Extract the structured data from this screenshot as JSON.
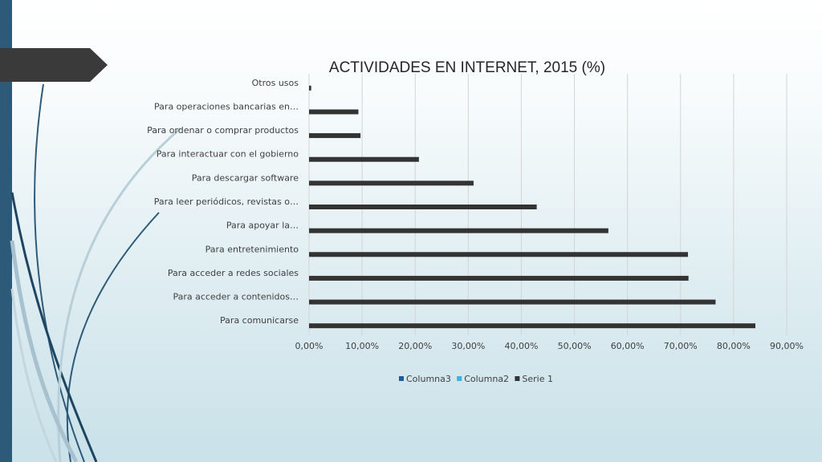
{
  "chart_data": {
    "type": "bar",
    "orientation": "horizontal",
    "title": "ACTIVIDADES EN INTERNET, 2015 (%)",
    "categories": [
      "Para comunicarse",
      "Para acceder a contenidos…",
      "Para acceder a redes sociales",
      "Para entretenimiento",
      "Para apoyar la…",
      "Para leer periódicos, revistas o…",
      "Para descargar software",
      "Para interactuar con el gobierno",
      "Para ordenar o comprar productos",
      "Para operaciones bancarias en…",
      "Otros usos"
    ],
    "series": [
      {
        "name": "Serie 1",
        "color": "#333333",
        "values": [
          84.1,
          76.6,
          71.5,
          71.4,
          56.4,
          42.9,
          31.0,
          20.7,
          9.7,
          9.3,
          0.4
        ]
      }
    ],
    "xlim": [
      0,
      90
    ],
    "ticks": [
      0,
      10,
      20,
      30,
      40,
      50,
      60,
      70,
      80,
      90
    ],
    "tick_labels": [
      "0,00%",
      "10,00%",
      "20,00%",
      "30,00%",
      "40,00%",
      "50,00%",
      "60,00%",
      "70,00%",
      "80,00%",
      "90,00%"
    ],
    "grid": true,
    "legend": {
      "position": "bottom",
      "entries": [
        {
          "name": "Columna3",
          "color": "#1f5c99"
        },
        {
          "name": "Columna2",
          "color": "#41aee0"
        },
        {
          "name": "Serie 1",
          "color": "#333333"
        }
      ]
    }
  }
}
